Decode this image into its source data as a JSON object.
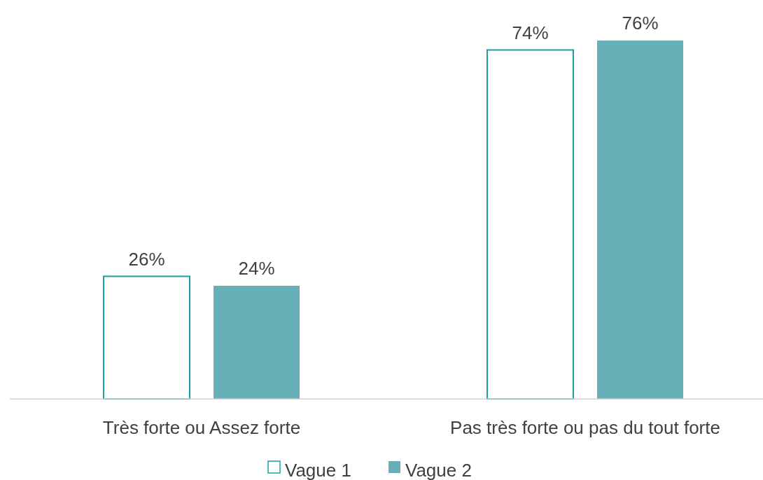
{
  "chart_data": {
    "type": "bar",
    "categories": [
      "Très forte ou Assez forte",
      "Pas très forte ou pas du tout forte"
    ],
    "series": [
      {
        "name": "Vague 1",
        "color": "#ffffff",
        "values": [
          26,
          74
        ],
        "value_labels": [
          "26%",
          "74%"
        ]
      },
      {
        "name": "Vague 2",
        "color": "#67b0b8",
        "values": [
          24,
          76
        ],
        "value_labels": [
          "24%",
          "76%"
        ]
      }
    ],
    "legend": "bottom",
    "grid": false
  }
}
